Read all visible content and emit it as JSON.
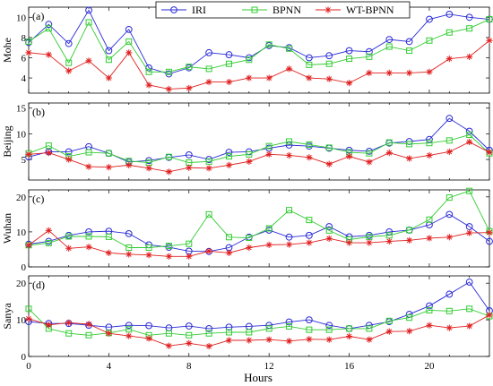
{
  "chart_data": {
    "type": "line",
    "xlabel": "Hours",
    "xlim": [
      0,
      23
    ],
    "xticks": [
      0,
      4,
      8,
      12,
      16,
      20
    ],
    "x": [
      0,
      1,
      2,
      3,
      4,
      5,
      6,
      7,
      8,
      9,
      10,
      11,
      12,
      13,
      14,
      15,
      16,
      17,
      18,
      19,
      20,
      21,
      22,
      23
    ],
    "legend_position": "top",
    "series_styles": [
      {
        "name": "IRI",
        "color": "#2a2ad6",
        "marker": "circle"
      },
      {
        "name": "BPNN",
        "color": "#33cc33",
        "marker": "square"
      },
      {
        "name": "WT-BPNN",
        "color": "#e02020",
        "marker": "star"
      }
    ],
    "panels": [
      {
        "tag": "(a)",
        "ylabel": "Mohe",
        "ylim": [
          2.5,
          11
        ],
        "yticks": [
          4,
          6,
          8,
          10
        ],
        "series": [
          {
            "name": "IRI",
            "values": [
              7.5,
              9.3,
              7.4,
              10.7,
              6.7,
              8.8,
              5.0,
              4.4,
              5.0,
              6.5,
              6.3,
              6.0,
              7.2,
              7.0,
              6.0,
              6.2,
              6.7,
              6.6,
              7.8,
              7.6,
              9.8,
              10.3,
              10.0,
              9.8
            ]
          },
          {
            "name": "BPNN",
            "values": [
              7.6,
              8.9,
              5.5,
              9.5,
              5.8,
              7.6,
              4.6,
              4.6,
              5.1,
              4.9,
              5.4,
              5.8,
              7.3,
              6.9,
              5.3,
              5.4,
              5.9,
              6.1,
              7.1,
              6.7,
              7.7,
              8.5,
              8.9,
              9.8
            ]
          },
          {
            "name": "WT-BPNN",
            "values": [
              6.5,
              6.3,
              4.7,
              5.7,
              4.0,
              6.5,
              3.3,
              2.9,
              3.0,
              3.6,
              3.6,
              4.0,
              4.0,
              4.9,
              4.0,
              3.9,
              3.5,
              4.5,
              4.5,
              4.5,
              4.6,
              5.9,
              6.1,
              7.7
            ]
          }
        ]
      },
      {
        "tag": "(b)",
        "ylabel": "Beijing",
        "ylim": [
          1,
          16
        ],
        "yticks": [
          5,
          10,
          15
        ],
        "series": [
          {
            "name": "IRI",
            "values": [
              5.5,
              6.5,
              6.5,
              7.5,
              6.2,
              4.5,
              4.8,
              5.4,
              5.9,
              5.0,
              6.4,
              6.5,
              7.2,
              7.8,
              7.6,
              7.2,
              6.8,
              6.6,
              8.2,
              8.5,
              8.9,
              13.0,
              10.5,
              6.8
            ]
          },
          {
            "name": "BPNN",
            "values": [
              6.2,
              7.7,
              5.6,
              6.4,
              6.2,
              4.7,
              4.4,
              5.5,
              4.4,
              4.6,
              5.6,
              6.0,
              7.6,
              8.5,
              7.9,
              7.3,
              6.4,
              6.2,
              8.3,
              8.0,
              8.2,
              8.7,
              9.8,
              6.2
            ]
          },
          {
            "name": "WT-BPNN",
            "values": [
              6.0,
              6.3,
              5.0,
              3.6,
              3.5,
              3.9,
              3.3,
              2.6,
              3.4,
              3.3,
              3.9,
              4.6,
              6.0,
              5.8,
              5.4,
              4.1,
              5.6,
              4.5,
              6.3,
              5.2,
              5.8,
              6.5,
              8.4,
              6.4
            ]
          }
        ]
      },
      {
        "tag": "(c)",
        "ylabel": "Wuhan",
        "ylim": [
          0,
          22
        ],
        "yticks": [
          0,
          10,
          20
        ],
        "series": [
          {
            "name": "IRI",
            "values": [
              6.5,
              7.3,
              9.0,
              10.0,
              10.2,
              9.5,
              6.3,
              5.6,
              4.5,
              4.4,
              5.5,
              8.5,
              10.5,
              8.5,
              9.0,
              11.5,
              8.6,
              9.0,
              10.0,
              10.5,
              12.0,
              15.0,
              11.5,
              7.3
            ]
          },
          {
            "name": "BPNN",
            "values": [
              6.2,
              6.8,
              8.7,
              8.7,
              8.6,
              5.5,
              5.5,
              6.0,
              6.6,
              15.0,
              8.5,
              8.3,
              11.0,
              16.2,
              13.4,
              10.4,
              7.8,
              8.6,
              9.0,
              10.5,
              13.5,
              19.8,
              21.7,
              10.2
            ]
          },
          {
            "name": "WT-BPNN",
            "values": [
              6.2,
              10.4,
              5.3,
              5.7,
              4.0,
              3.6,
              3.4,
              3.0,
              3.0,
              4.5,
              4.0,
              5.5,
              6.3,
              6.4,
              6.9,
              8.1,
              6.9,
              6.9,
              7.3,
              7.6,
              8.2,
              8.5,
              9.7,
              9.8
            ]
          }
        ]
      },
      {
        "tag": "(d)",
        "ylabel": "Sanya",
        "ylim": [
          0,
          22
        ],
        "yticks": [
          0,
          10,
          20
        ],
        "series": [
          {
            "name": "IRI",
            "values": [
              9.5,
              9.0,
              9.0,
              8.5,
              8.0,
              8.5,
              8.4,
              7.8,
              8.3,
              7.6,
              8.0,
              8.2,
              8.5,
              9.4,
              10.0,
              8.5,
              7.6,
              8.5,
              9.5,
              11.5,
              13.8,
              17.0,
              20.3,
              12.5
            ]
          },
          {
            "name": "BPNN",
            "values": [
              13.0,
              7.6,
              6.3,
              5.8,
              6.4,
              7.4,
              5.8,
              6.3,
              5.8,
              6.3,
              6.6,
              6.6,
              7.6,
              8.2,
              7.3,
              7.3,
              7.6,
              7.6,
              9.7,
              10.6,
              12.6,
              12.4,
              13.0,
              11.0
            ]
          },
          {
            "name": "WT-BPNN",
            "values": [
              10.3,
              8.6,
              9.2,
              8.8,
              6.3,
              5.6,
              4.9,
              2.9,
              3.6,
              2.8,
              4.4,
              4.4,
              4.6,
              4.2,
              4.7,
              4.6,
              5.5,
              4.6,
              6.8,
              6.9,
              8.5,
              7.8,
              8.3,
              11.3
            ]
          }
        ]
      }
    ]
  }
}
